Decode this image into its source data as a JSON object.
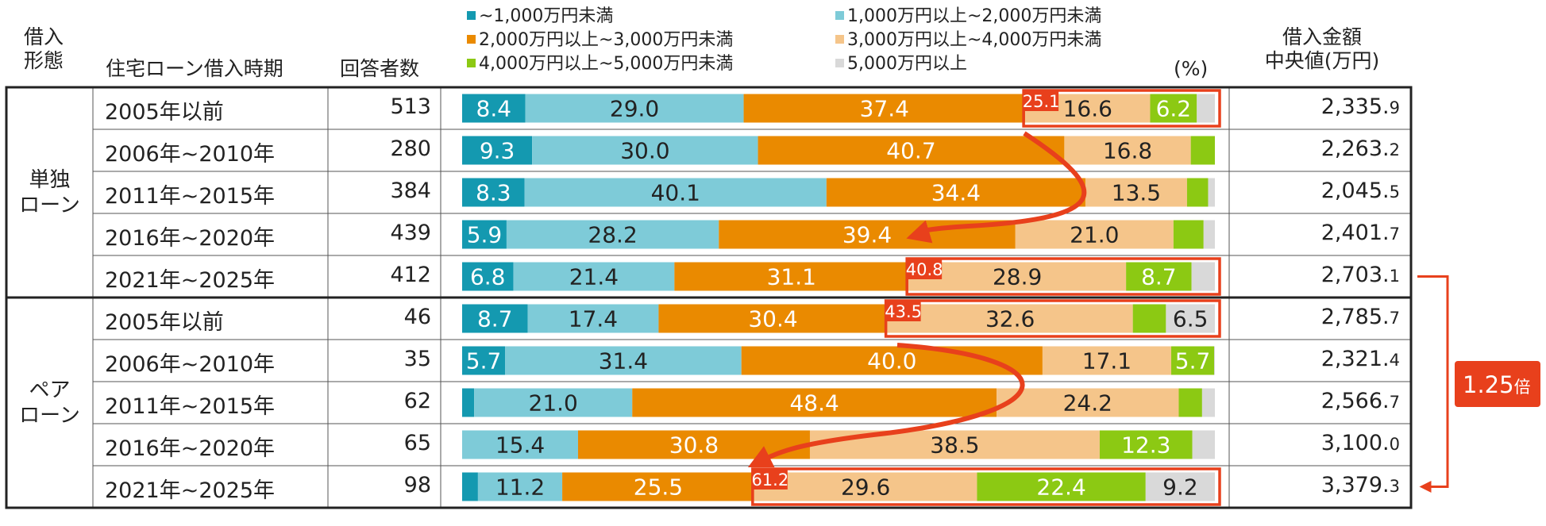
{
  "headers": {
    "type": [
      "借入",
      "形態"
    ],
    "period": "住宅ローン借入時期",
    "respondents": "回答者数",
    "median": [
      "借入金額",
      "中央値(万円)"
    ],
    "unit": "(%)"
  },
  "legend": [
    {
      "label": "~1,000万円未満",
      "color": "#1499b0"
    },
    {
      "label": "1,000万円以上~2,000万円未満",
      "color": "#7ecbd8"
    },
    {
      "label": "2,000万円以上~3,000万円未満",
      "color": "#ea8a00"
    },
    {
      "label": "3,000万円以上~4,000万円未満",
      "color": "#f5c58a"
    },
    {
      "label": "4,000万円以上~5,000万円未満",
      "color": "#8cc913"
    },
    {
      "label": "5,000万円以上",
      "color": "#d9d9d9"
    }
  ],
  "groups": [
    {
      "name": [
        "単独",
        "ローン"
      ],
      "rows": [
        {
          "period": "2005年以前",
          "respondents": "513",
          "median_main": "2,335.",
          "median_dec": "9"
        },
        {
          "period": "2006年~2010年",
          "respondents": "280",
          "median_main": "2,263.",
          "median_dec": "2"
        },
        {
          "period": "2011年~2015年",
          "respondents": "384",
          "median_main": "2,045.",
          "median_dec": "5"
        },
        {
          "period": "2016年~2020年",
          "respondents": "439",
          "median_main": "2,401.",
          "median_dec": "7"
        },
        {
          "period": "2021年~2025年",
          "respondents": "412",
          "median_main": "2,703.",
          "median_dec": "1"
        }
      ]
    },
    {
      "name": [
        "ペア",
        "ローン"
      ],
      "rows": [
        {
          "period": "2005年以前",
          "respondents": "46",
          "median_main": "2,785.",
          "median_dec": "7"
        },
        {
          "period": "2006年~2010年",
          "respondents": "35",
          "median_main": "2,321.",
          "median_dec": "4"
        },
        {
          "period": "2011年~2015年",
          "respondents": "62",
          "median_main": "2,566.",
          "median_dec": "7"
        },
        {
          "period": "2016年~2020年",
          "respondents": "65",
          "median_main": "3,100.",
          "median_dec": "0"
        },
        {
          "period": "2021年~2025年",
          "respondents": "98",
          "median_main": "3,379.",
          "median_dec": "3"
        }
      ]
    }
  ],
  "chart_data": {
    "type": "bar",
    "orientation": "horizontal",
    "stacked": "100%",
    "categories": [
      "単独ローン 2005年以前",
      "単独ローン 2006年~2010年",
      "単独ローン 2011年~2015年",
      "単独ローン 2016年~2020年",
      "単独ローン 2021年~2025年",
      "ペアローン 2005年以前",
      "ペアローン 2006年~2010年",
      "ペアローン 2011年~2015年",
      "ペアローン 2016年~2020年",
      "ペアローン 2021年~2025年"
    ],
    "series": [
      {
        "name": "~1,000万円未満",
        "values": [
          8.4,
          9.3,
          8.3,
          5.9,
          6.8,
          8.7,
          5.7,
          1.6,
          0.0,
          2.1
        ],
        "labels": [
          "8.4",
          "9.3",
          "8.3",
          "5.9",
          "6.8",
          "8.7",
          "5.7",
          "",
          "",
          ""
        ]
      },
      {
        "name": "1,000万円以上~2,000万円未満",
        "values": [
          29.0,
          30.0,
          40.1,
          28.2,
          21.4,
          17.4,
          31.4,
          21.0,
          15.4,
          11.2
        ],
        "labels": [
          "29.0",
          "30.0",
          "40.1",
          "28.2",
          "21.4",
          "17.4",
          "31.4",
          "21.0",
          "15.4",
          "11.2"
        ]
      },
      {
        "name": "2,000万円以上~3,000万円未満",
        "values": [
          37.4,
          40.7,
          34.4,
          39.4,
          31.1,
          30.4,
          40.0,
          48.4,
          30.8,
          25.5
        ],
        "labels": [
          "37.4",
          "40.7",
          "34.4",
          "39.4",
          "31.1",
          "30.4",
          "40.0",
          "48.4",
          "30.8",
          "25.5"
        ]
      },
      {
        "name": "3,000万円以上~4,000万円未満",
        "values": [
          16.6,
          16.8,
          13.5,
          21.0,
          28.9,
          32.6,
          17.1,
          24.2,
          38.5,
          29.6
        ],
        "labels": [
          "16.6",
          "16.8",
          "13.5",
          "21.0",
          "28.9",
          "32.6",
          "17.1",
          "24.2",
          "38.5",
          "29.6"
        ]
      },
      {
        "name": "4,000万円以上~5,000万円未満",
        "values": [
          6.2,
          3.2,
          2.8,
          4.0,
          8.7,
          4.4,
          5.7,
          3.1,
          12.3,
          22.4
        ],
        "labels": [
          "6.2",
          "",
          "",
          "",
          "8.7",
          "",
          "5.7",
          "",
          "12.3",
          "22.4"
        ]
      },
      {
        "name": "5,000万円以上",
        "values": [
          2.4,
          0.0,
          0.9,
          1.5,
          3.1,
          6.5,
          0.1,
          1.7,
          3.0,
          9.2
        ],
        "labels": [
          "",
          "",
          "",
          "",
          "",
          "6.5",
          "",
          "",
          "",
          "9.2"
        ]
      }
    ],
    "xlim": [
      0,
      100
    ],
    "unit": "%",
    "highlights": [
      {
        "row": 0,
        "from_series": 3,
        "label": "25.1"
      },
      {
        "row": 4,
        "from_series": 3,
        "label": "40.8"
      },
      {
        "row": 5,
        "from_series": 3,
        "label": "43.5"
      },
      {
        "row": 9,
        "from_series": 3,
        "label": "61.2"
      }
    ],
    "ratio_annotation": {
      "value": "1.25",
      "suffix": "倍"
    },
    "highlight_color": "#e8401c"
  }
}
